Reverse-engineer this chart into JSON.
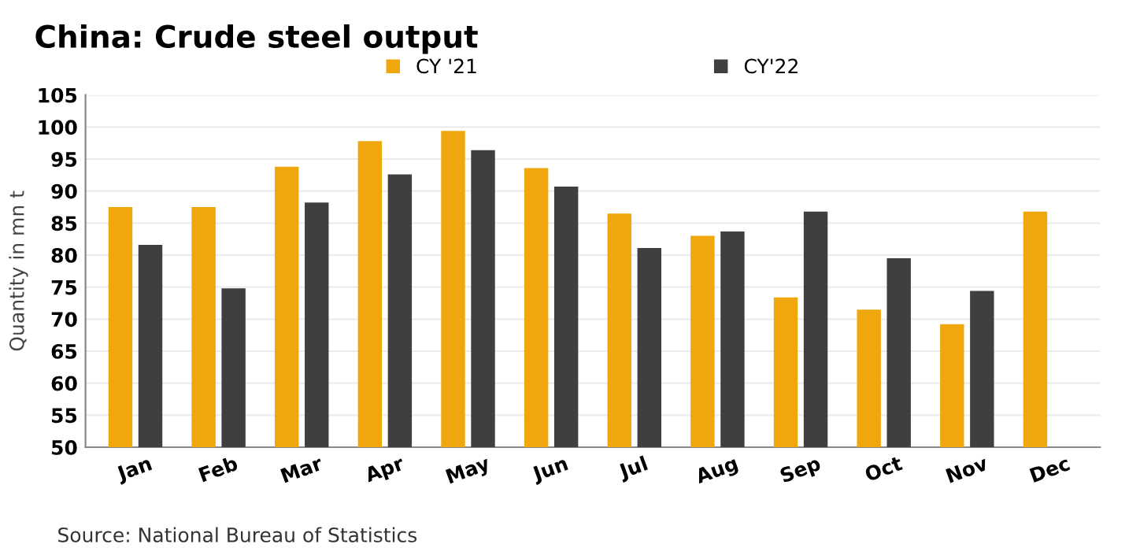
{
  "chart_data": {
    "type": "bar",
    "title": "China: Crude steel output",
    "ylabel": "Quantity in mn t",
    "categories": [
      "Jan",
      "Feb",
      "Mar",
      "Apr",
      "May",
      "Jun",
      "Jul",
      "Aug",
      "Sep",
      "Oct",
      "Nov",
      "Dec"
    ],
    "series": [
      {
        "name": "CY '21",
        "color": "#f0a70d",
        "values": [
          87.5,
          87.5,
          93.8,
          97.8,
          99.4,
          93.6,
          86.5,
          83.0,
          73.4,
          71.5,
          69.2,
          86.8
        ]
      },
      {
        "name": "CY'22",
        "color": "#3f3f3f",
        "values": [
          81.6,
          74.8,
          88.2,
          92.6,
          96.4,
          90.7,
          81.1,
          83.7,
          86.8,
          79.5,
          74.4,
          null
        ]
      }
    ],
    "ylim": [
      50,
      105
    ],
    "yticks": [
      50,
      55,
      60,
      65,
      70,
      75,
      80,
      85,
      90,
      95,
      100,
      105
    ],
    "grid": "y",
    "legend": "top",
    "annotations": [
      "Source: National Bureau of Statistics"
    ]
  }
}
